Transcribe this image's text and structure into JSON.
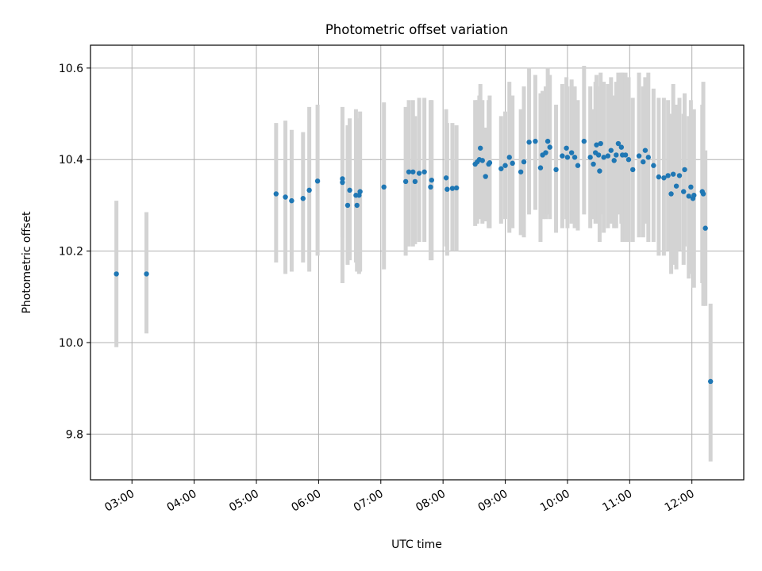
{
  "chart_data": {
    "type": "scatter",
    "title": "Photometric offset variation",
    "xlabel": "UTC time",
    "ylabel": "Photometric offset",
    "x_unit": "UTC hours",
    "xlim": [
      "02:20",
      "12:50"
    ],
    "ylim": [
      9.7,
      10.65
    ],
    "x_ticks": [
      "03:00",
      "04:00",
      "05:00",
      "06:00",
      "07:00",
      "08:00",
      "09:00",
      "10:00",
      "11:00",
      "12:00"
    ],
    "y_ticks": [
      9.8,
      10.0,
      10.2,
      10.4,
      10.6
    ],
    "grid": true,
    "legend": "none",
    "colors": {
      "point": "#1f77b4",
      "errorbar": "#d3d3d3",
      "grid": "#b0b0b0"
    },
    "series": [
      {
        "x": [
          "02:45",
          "03:14",
          "05:19",
          "05:28",
          "05:34",
          "05:45",
          "05:51",
          "05:59",
          "06:23",
          "06:23",
          "06:28",
          "06:30",
          "06:36",
          "06:37",
          "06:39",
          "06:40",
          "07:03",
          "07:24",
          "07:27",
          "07:31",
          "07:33",
          "07:37",
          "07:42",
          "07:48",
          "07:49",
          "08:03",
          "08:04",
          "08:09",
          "08:13",
          "08:31",
          "08:33",
          "08:35",
          "08:36",
          "08:38",
          "08:41",
          "08:44",
          "08:45",
          "08:56",
          "09:00",
          "09:04",
          "09:07",
          "09:15",
          "09:18",
          "09:23",
          "09:29",
          "09:34",
          "09:36",
          "09:39",
          "09:41",
          "09:43",
          "09:49",
          "09:55",
          "09:59",
          "10:00",
          "10:04",
          "10:07",
          "10:10",
          "10:16",
          "10:22",
          "10:25",
          "10:27",
          "10:28",
          "10:30",
          "10:31",
          "10:32",
          "10:35",
          "10:39",
          "10:42",
          "10:45",
          "10:47",
          "10:49",
          "10:52",
          "10:53",
          "10:56",
          "10:59",
          "11:03",
          "11:09",
          "11:13",
          "11:15",
          "11:18",
          "11:23",
          "11:28",
          "11:33",
          "11:37",
          "11:40",
          "11:42",
          "11:45",
          "11:48",
          "11:52",
          "11:53",
          "11:57",
          "11:59",
          "12:01",
          "12:02",
          "12:10",
          "12:11",
          "12:13",
          "12:18"
        ],
        "y": [
          10.15,
          10.15,
          10.325,
          10.318,
          10.31,
          10.315,
          10.333,
          10.353,
          10.35,
          10.358,
          10.3,
          10.333,
          10.322,
          10.3,
          10.322,
          10.33,
          10.34,
          10.352,
          10.373,
          10.373,
          10.352,
          10.37,
          10.373,
          10.34,
          10.355,
          10.36,
          10.335,
          10.337,
          10.338,
          10.39,
          10.395,
          10.4,
          10.425,
          10.398,
          10.363,
          10.39,
          10.393,
          10.38,
          10.387,
          10.405,
          10.392,
          10.373,
          10.395,
          10.438,
          10.44,
          10.382,
          10.41,
          10.415,
          10.44,
          10.427,
          10.378,
          10.408,
          10.425,
          10.405,
          10.415,
          10.405,
          10.387,
          10.44,
          10.405,
          10.39,
          10.415,
          10.432,
          10.41,
          10.375,
          10.435,
          10.405,
          10.408,
          10.42,
          10.398,
          10.41,
          10.435,
          10.427,
          10.41,
          10.41,
          10.4,
          10.378,
          10.408,
          10.395,
          10.42,
          10.405,
          10.387,
          10.362,
          10.36,
          10.365,
          10.325,
          10.368,
          10.342,
          10.365,
          10.33,
          10.378,
          10.32,
          10.34,
          10.315,
          10.322,
          10.33,
          10.325,
          10.25,
          9.915
        ],
        "yerr_low": [
          9.99,
          10.02,
          10.175,
          10.15,
          10.155,
          10.175,
          10.155,
          10.19,
          10.23,
          10.13,
          10.17,
          10.18,
          10.175,
          10.155,
          10.15,
          10.155,
          10.16,
          10.19,
          10.21,
          10.21,
          10.215,
          10.22,
          10.22,
          10.18,
          10.18,
          10.21,
          10.19,
          10.2,
          10.2,
          10.255,
          10.26,
          10.27,
          10.29,
          10.26,
          10.265,
          10.25,
          10.25,
          10.26,
          10.27,
          10.24,
          10.25,
          10.235,
          10.23,
          10.28,
          10.29,
          10.22,
          10.27,
          10.27,
          10.28,
          10.27,
          10.24,
          10.25,
          10.27,
          10.25,
          10.26,
          10.25,
          10.245,
          10.28,
          10.25,
          10.27,
          10.26,
          10.28,
          10.26,
          10.22,
          10.28,
          10.24,
          10.25,
          10.26,
          10.25,
          10.25,
          10.28,
          10.26,
          10.22,
          10.22,
          10.22,
          10.22,
          10.23,
          10.23,
          10.26,
          10.22,
          10.22,
          10.19,
          10.19,
          10.2,
          10.15,
          10.17,
          10.16,
          10.2,
          10.17,
          10.21,
          10.14,
          10.15,
          10.16,
          10.12,
          10.13,
          10.08,
          10.08,
          9.74
        ],
        "yerr_high": [
          10.31,
          10.285,
          10.48,
          10.485,
          10.465,
          10.46,
          10.515,
          10.52,
          10.515,
          10.485,
          10.475,
          10.49,
          10.51,
          10.49,
          10.48,
          10.505,
          10.525,
          10.515,
          10.53,
          10.53,
          10.495,
          10.535,
          10.535,
          10.53,
          10.53,
          10.51,
          10.48,
          10.48,
          10.475,
          10.53,
          10.53,
          10.54,
          10.565,
          10.53,
          10.47,
          10.53,
          10.54,
          10.495,
          10.505,
          10.57,
          10.54,
          10.51,
          10.56,
          10.6,
          10.585,
          10.545,
          10.55,
          10.56,
          10.6,
          10.585,
          10.52,
          10.565,
          10.58,
          10.56,
          10.575,
          10.56,
          10.53,
          10.605,
          10.56,
          10.51,
          10.57,
          10.585,
          10.56,
          10.53,
          10.59,
          10.57,
          10.565,
          10.58,
          10.54,
          10.57,
          10.59,
          10.59,
          10.59,
          10.59,
          10.58,
          10.535,
          10.59,
          10.56,
          10.58,
          10.59,
          10.555,
          10.535,
          10.535,
          10.53,
          10.5,
          10.565,
          10.52,
          10.535,
          10.5,
          10.545,
          10.495,
          10.53,
          10.47,
          10.51,
          10.52,
          10.57,
          10.42,
          10.085
        ]
      }
    ]
  }
}
